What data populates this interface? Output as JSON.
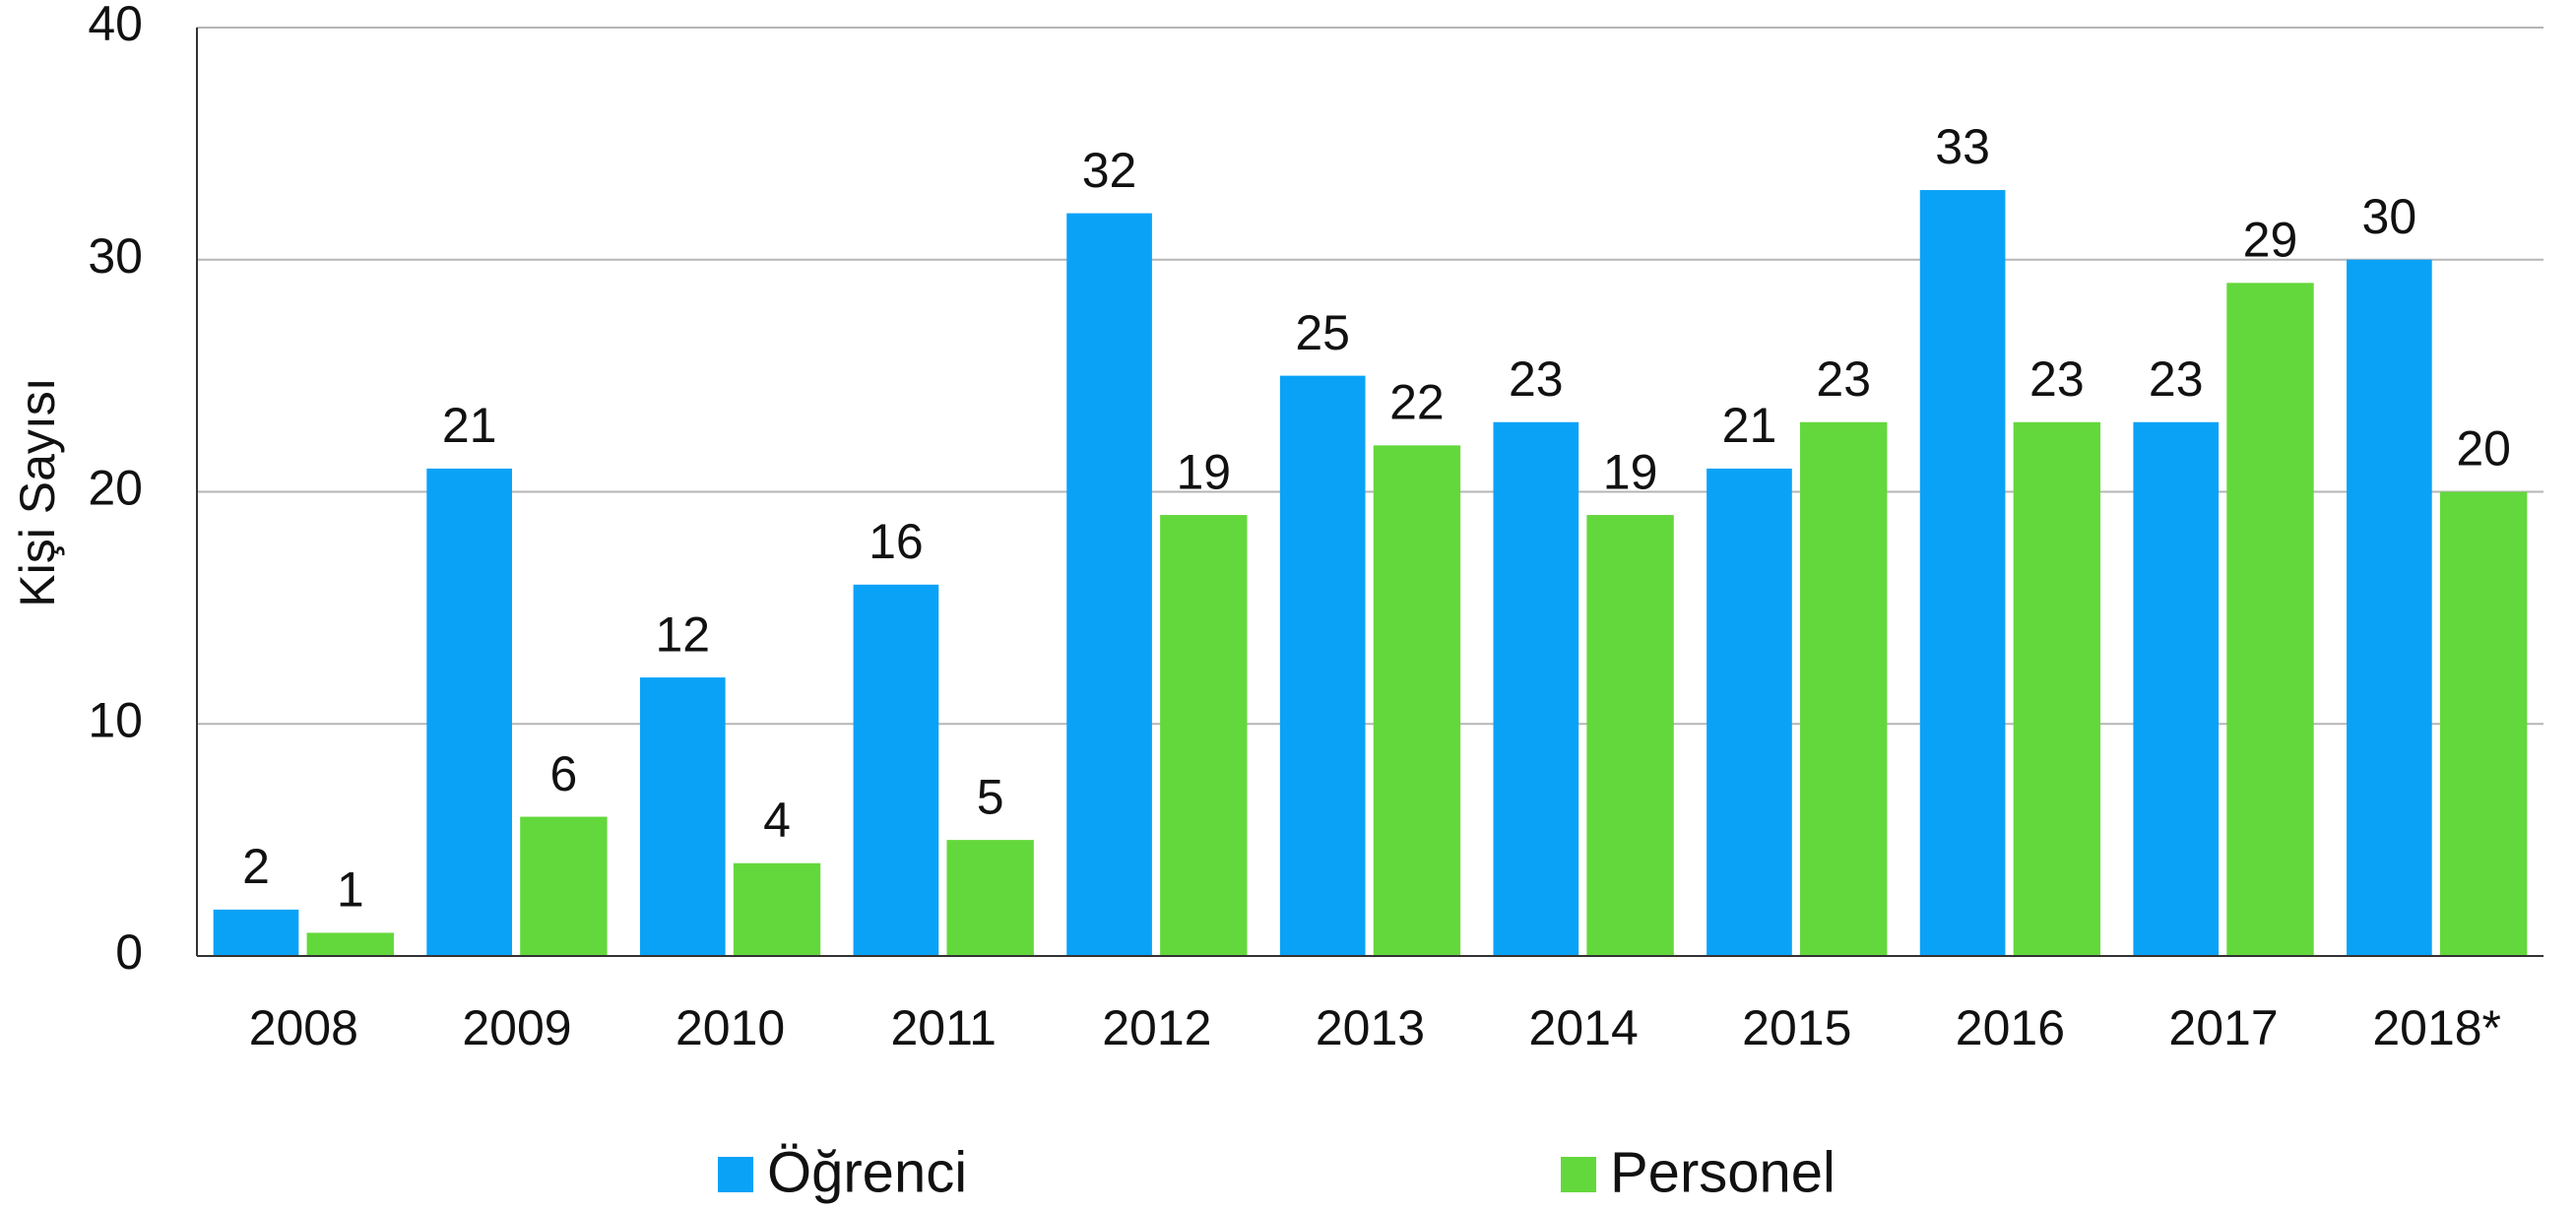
{
  "chart_data": {
    "type": "bar",
    "y_label": "Kişi Sayısı",
    "categories": [
      "2008",
      "2009",
      "2010",
      "2011",
      "2012",
      "2013",
      "2014",
      "2015",
      "2016",
      "2017",
      "2018*"
    ],
    "series": [
      {
        "name": "Öğrenci",
        "color": "#0aa2f7",
        "values": [
          2,
          21,
          12,
          16,
          32,
          25,
          23,
          21,
          33,
          23,
          30
        ]
      },
      {
        "name": "Personel",
        "color": "#63d83c",
        "values": [
          1,
          6,
          4,
          5,
          19,
          22,
          19,
          23,
          23,
          29,
          20
        ]
      }
    ],
    "ylim": [
      0,
      40
    ],
    "yticks": [
      0,
      10,
      20,
      30,
      40
    ],
    "grid": true,
    "legend": "bottom"
  }
}
